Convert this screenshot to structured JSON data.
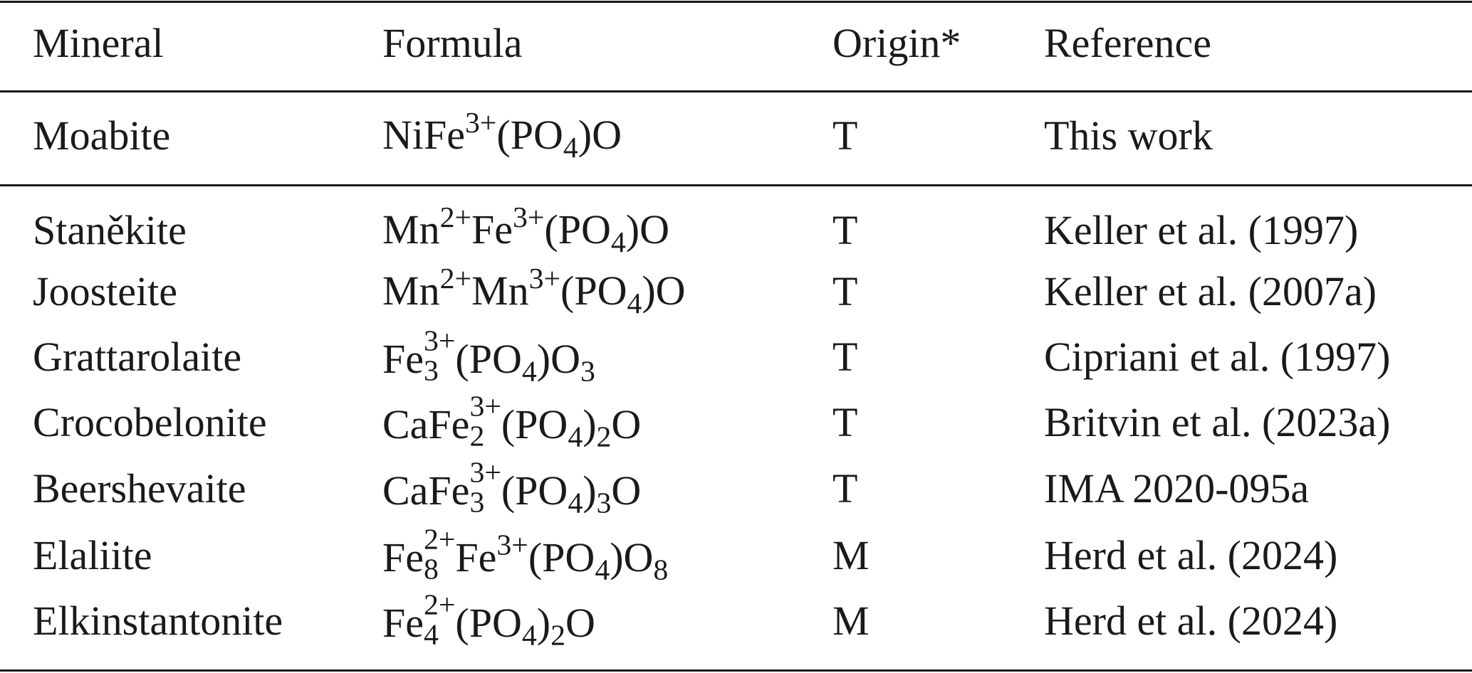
{
  "table": {
    "header": [
      "Mineral",
      "Formula",
      "Origin*",
      "Reference"
    ],
    "rows": [
      {
        "mineral": "Moabite",
        "formula": [
          {
            "text": "NiFe",
            "sup": "3+"
          },
          {
            "text": "(PO",
            "sub": "4"
          },
          {
            "text": ")O"
          }
        ],
        "origin": "T",
        "reference": "This work"
      },
      {
        "mineral": "Staněkite",
        "formula": [
          {
            "text": "Mn",
            "sup": "2+"
          },
          {
            "text": "Fe",
            "sup": "3+"
          },
          {
            "text": "(PO",
            "sub": "4"
          },
          {
            "text": ")O"
          }
        ],
        "origin": "T",
        "reference": "Keller et al. (1997)"
      },
      {
        "mineral": "Joosteite",
        "formula": [
          {
            "text": "Mn",
            "sup": "2+"
          },
          {
            "text": "Mn",
            "sup": "3+"
          },
          {
            "text": "(PO",
            "sub": "4"
          },
          {
            "text": ")O"
          }
        ],
        "origin": "T",
        "reference": "Keller et al. (2007a)"
      },
      {
        "mineral": "Grattarolaite",
        "formula": [
          {
            "text": "Fe",
            "sub": "3",
            "sup": "3+"
          },
          {
            "text": "(PO",
            "sub": "4"
          },
          {
            "text": ")O",
            "sub": "3"
          }
        ],
        "origin": "T",
        "reference": "Cipriani et al. (1997)"
      },
      {
        "mineral": "Crocobelonite",
        "formula": [
          {
            "text": "CaFe",
            "sub": "2",
            "sup": "3+"
          },
          {
            "text": "(PO",
            "sub": "4"
          },
          {
            "text": ")",
            "sub": "2"
          },
          {
            "text": "O"
          }
        ],
        "origin": "T",
        "reference": "Britvin et al. (2023a)"
      },
      {
        "mineral": "Beershevaite",
        "formula": [
          {
            "text": "CaFe",
            "sub": "3",
            "sup": "3+"
          },
          {
            "text": "(PO",
            "sub": "4"
          },
          {
            "text": ")",
            "sub": "3"
          },
          {
            "text": "O"
          }
        ],
        "origin": "T",
        "reference": "IMA 2020-095a"
      },
      {
        "mineral": "Elaliite",
        "formula": [
          {
            "text": "Fe",
            "sub": "8",
            "sup": "2+"
          },
          {
            "text": "Fe",
            "sup": "3+"
          },
          {
            "text": "(PO",
            "sub": "4"
          },
          {
            "text": ")O",
            "sub": "8"
          }
        ],
        "origin": "M",
        "reference": "Herd et al. (2024)"
      },
      {
        "mineral": "Elkinstantonite",
        "formula": [
          {
            "text": "Fe",
            "sub": "4",
            "sup": "2+"
          },
          {
            "text": "(PO",
            "sub": "4"
          },
          {
            "text": ")",
            "sub": "2"
          },
          {
            "text": "O"
          }
        ],
        "origin": "M",
        "reference": "Herd et al. (2024)"
      }
    ]
  }
}
